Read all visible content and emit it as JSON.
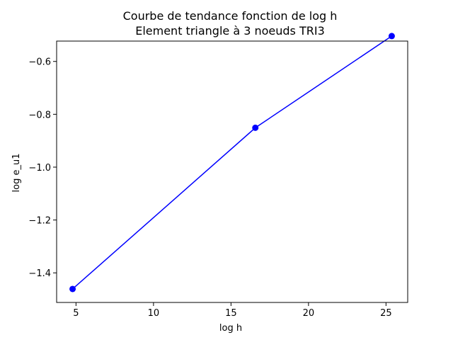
{
  "chart_data": {
    "type": "line",
    "title": "Courbe de tendance fonction de log h",
    "subtitle": "Element triangle à 3 noeuds TRI3",
    "xlabel": "log h",
    "ylabel": "log e_u1",
    "xlim": [
      3.75,
      26.4
    ],
    "ylim": [
      -1.512,
      -0.523
    ],
    "xticks": [
      5,
      10,
      15,
      20,
      25
    ],
    "xtick_labels": [
      "5",
      "10",
      "15",
      "20",
      "25"
    ],
    "yticks": [
      -1.4,
      -1.2,
      -1.0,
      -0.8,
      -0.6
    ],
    "ytick_labels": [
      "−1.4",
      "−1.2",
      "−1.0",
      "−0.8",
      "−0.6"
    ],
    "grid": false,
    "series": [
      {
        "color": "#0000ff",
        "marker": "circle",
        "x": [
          4.78,
          16.57,
          25.37
        ],
        "y": [
          -1.461,
          -0.851,
          -0.504
        ]
      }
    ]
  }
}
